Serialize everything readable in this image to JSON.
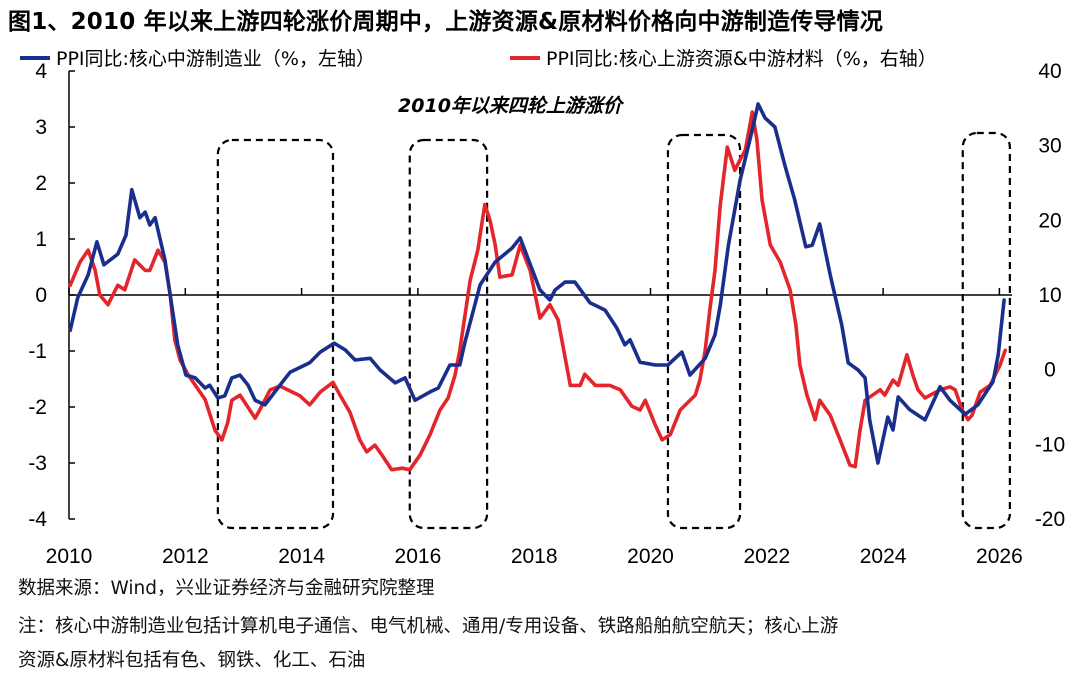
{
  "title": "图1、2010 年以来上游四轮涨价周期中，上游资源&原材料价格向中游制造传导情况",
  "footer": {
    "source": "数据来源：Wind，兴业证券经济与金融研究院整理",
    "note_line1": "注：核心中游制造业包括计算机电子通信、电气机械、通用/专用设备、铁路船舶航空航天；核心上游",
    "note_line2": "资源&原材料包括有色、钢铁、化工、石油"
  },
  "chart_data": {
    "type": "line",
    "title": "",
    "annotation": "2010年以来四轮上游涨价",
    "grid": false,
    "legend_position": "top",
    "x_ticks": [
      "2010",
      "2012",
      "2014",
      "2016",
      "2018",
      "2020",
      "2022",
      "2024",
      "2026"
    ],
    "xlim": [
      2010,
      2026.2
    ],
    "y_left": {
      "ylim": [
        -4,
        4
      ],
      "ticks": [
        "4",
        "3",
        "2",
        "1",
        "0",
        "-1",
        "-2",
        "-3",
        "-4"
      ]
    },
    "y_right": {
      "ylim": [
        -20,
        40
      ],
      "ticks": [
        "40",
        "30",
        "20",
        "10",
        "0",
        "-10",
        "-20"
      ]
    },
    "highlight_periods": [
      [
        2012.56,
        2014.54
      ],
      [
        2015.86,
        2017.19
      ],
      [
        2020.3,
        2021.54
      ],
      [
        2025.37,
        2026.18
      ]
    ],
    "series": [
      {
        "name": "PPI同比:核心中游制造业（%，左轴）",
        "axis": "left",
        "color": "#1a2f8c",
        "x": [
          2010.02,
          2010.15,
          2010.33,
          2010.48,
          2010.6,
          2010.84,
          2010.98,
          2011.08,
          2011.22,
          2011.31,
          2011.39,
          2011.48,
          2011.65,
          2011.74,
          2011.87,
          2012.01,
          2012.17,
          2012.34,
          2012.42,
          2012.56,
          2012.68,
          2012.8,
          2012.94,
          2013.08,
          2013.2,
          2013.37,
          2013.59,
          2013.8,
          2014.14,
          2014.32,
          2014.56,
          2014.75,
          2014.92,
          2015.18,
          2015.35,
          2015.61,
          2015.78,
          2015.95,
          2016.21,
          2016.35,
          2016.55,
          2016.72,
          2016.81,
          2017.07,
          2017.33,
          2017.62,
          2017.76,
          2017.89,
          2018.1,
          2018.27,
          2018.36,
          2018.53,
          2018.7,
          2018.96,
          2019.22,
          2019.42,
          2019.56,
          2019.65,
          2019.82,
          2020.08,
          2020.3,
          2020.54,
          2020.68,
          2020.94,
          2021.11,
          2021.2,
          2021.34,
          2021.54,
          2021.75,
          2021.85,
          2021.97,
          2022.14,
          2022.31,
          2022.48,
          2022.67,
          2022.78,
          2022.91,
          2023.09,
          2023.29,
          2023.4,
          2023.57,
          2023.69,
          2023.77,
          2023.91,
          2024.08,
          2024.17,
          2024.26,
          2024.46,
          2024.72,
          2024.98,
          2025.15,
          2025.41,
          2025.63,
          2025.89,
          2025.98,
          2026.08
        ],
        "values": [
          -0.63,
          -0.05,
          0.36,
          0.95,
          0.54,
          0.73,
          1.07,
          1.88,
          1.38,
          1.48,
          1.25,
          1.38,
          0.63,
          0,
          -0.89,
          -1.43,
          -1.48,
          -1.66,
          -1.61,
          -1.84,
          -1.8,
          -1.48,
          -1.43,
          -1.61,
          -1.88,
          -1.96,
          -1.66,
          -1.38,
          -1.21,
          -1.02,
          -0.86,
          -0.98,
          -1.16,
          -1.13,
          -1.34,
          -1.57,
          -1.48,
          -1.88,
          -1.73,
          -1.66,
          -1.25,
          -1.25,
          -0.84,
          0.18,
          0.59,
          0.84,
          1.02,
          0.66,
          0.09,
          -0.09,
          0.09,
          0.23,
          0.23,
          -0.14,
          -0.27,
          -0.59,
          -0.89,
          -0.8,
          -1.2,
          -1.25,
          -1.25,
          -1.02,
          -1.43,
          -1.13,
          -0.71,
          -0.18,
          0.89,
          2.05,
          2.95,
          3.41,
          3.16,
          3.0,
          2.32,
          1.7,
          0.86,
          0.89,
          1.27,
          0.36,
          -0.54,
          -1.21,
          -1.34,
          -1.48,
          -2.23,
          -3.0,
          -2.18,
          -2.41,
          -1.82,
          -2.05,
          -2.23,
          -1.64,
          -1.88,
          -2.13,
          -1.96,
          -1.55,
          -1.07,
          -0.09
        ]
      },
      {
        "name": "PPI同比:核心上游资源&中游材料（%，右轴）",
        "axis": "right",
        "color": "#e3262c",
        "x": [
          2010.02,
          2010.19,
          2010.33,
          2010.45,
          2010.53,
          2010.67,
          2010.84,
          2010.96,
          2011.13,
          2011.31,
          2011.39,
          2011.53,
          2011.65,
          2011.74,
          2011.82,
          2011.91,
          2012.05,
          2012.34,
          2012.51,
          2012.63,
          2012.73,
          2012.8,
          2012.94,
          2013.2,
          2013.28,
          2013.46,
          2013.63,
          2013.97,
          2014.14,
          2014.32,
          2014.54,
          2014.66,
          2014.83,
          2015.0,
          2015.12,
          2015.26,
          2015.38,
          2015.55,
          2015.73,
          2015.86,
          2016.04,
          2016.21,
          2016.38,
          2016.52,
          2016.64,
          2016.72,
          2016.9,
          2017.03,
          2017.15,
          2017.24,
          2017.33,
          2017.41,
          2017.62,
          2017.76,
          2017.93,
          2018.1,
          2018.27,
          2018.41,
          2018.62,
          2018.79,
          2018.87,
          2019.05,
          2019.3,
          2019.48,
          2019.68,
          2019.82,
          2019.91,
          2020.08,
          2020.2,
          2020.34,
          2020.51,
          2020.77,
          2020.85,
          2020.94,
          2021.02,
          2021.11,
          2021.2,
          2021.32,
          2021.45,
          2021.54,
          2021.63,
          2021.75,
          2021.83,
          2021.92,
          2022.06,
          2022.23,
          2022.4,
          2022.5,
          2022.57,
          2022.69,
          2022.83,
          2022.91,
          2023.09,
          2023.26,
          2023.43,
          2023.52,
          2023.6,
          2023.69,
          2023.95,
          2024.03,
          2024.17,
          2024.26,
          2024.41,
          2024.51,
          2024.6,
          2024.72,
          2024.98,
          2025.15,
          2025.24,
          2025.36,
          2025.46,
          2025.53,
          2025.67,
          2025.84,
          2026.01,
          2026.1
        ],
        "values": [
          11.3,
          14.4,
          16.0,
          13.3,
          10.0,
          8.7,
          11.3,
          10.7,
          14.7,
          13.3,
          13.3,
          16.0,
          14.4,
          10.0,
          4.0,
          1.3,
          -0.7,
          -4.0,
          -8.1,
          -9.4,
          -7.1,
          -4.1,
          -3.4,
          -6.5,
          -5.4,
          -2.7,
          -2.2,
          -3.5,
          -4.7,
          -3.0,
          -1.7,
          -3.4,
          -5.7,
          -9.4,
          -11.0,
          -10.1,
          -11.4,
          -13.4,
          -13.2,
          -13.4,
          -11.4,
          -8.7,
          -5.4,
          -3.8,
          -0.7,
          2.6,
          12.0,
          16.0,
          22.1,
          20.0,
          16.7,
          12.4,
          12.7,
          16.7,
          13.3,
          6.9,
          8.7,
          6.7,
          -2.1,
          -2.1,
          -0.6,
          -2.1,
          -2.1,
          -2.7,
          -4.9,
          -5.4,
          -4.1,
          -7.4,
          -9.4,
          -8.7,
          -5.4,
          -3.4,
          -1.4,
          2.6,
          8.0,
          13.3,
          22.1,
          29.8,
          26.7,
          28.1,
          29.4,
          34.5,
          30.8,
          22.7,
          16.7,
          14.4,
          10.7,
          6.0,
          0.6,
          -3.4,
          -6.7,
          -4.1,
          -6.1,
          -9.4,
          -12.8,
          -13.0,
          -8.3,
          -4.1,
          -2.7,
          -3.4,
          -1.4,
          -2.1,
          2.0,
          -0.7,
          -2.7,
          -3.8,
          -2.7,
          -2.3,
          -2.7,
          -5.4,
          -6.7,
          -6.1,
          -3.0,
          -2.1,
          0.6,
          2.6
        ]
      }
    ]
  }
}
